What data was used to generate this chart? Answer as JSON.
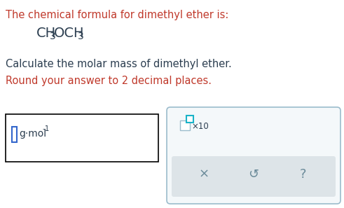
{
  "bg_color": "#ffffff",
  "text_color_red": "#c0392b",
  "text_color_dark": "#2c3e50",
  "line1": "The chemical formula for dimethyl ether is:",
  "line3": "Calculate the molar mass of dimethyl ether.",
  "line4": "Round your answer to 2 decimal places.",
  "unit_main": "g·mol",
  "unit_sup": "-1",
  "box1_border": "#000000",
  "box2_border": "#9bbccc",
  "box2_bg": "#f4f8fa",
  "input_cursor_color": "#3366cc",
  "teal_box_color": "#1ab3c8",
  "icon_color": "#6a8a99",
  "gray_band_color": "#dde4e8",
  "font_size_text": 10.5,
  "font_size_formula": 14,
  "font_size_formula_sub": 10
}
